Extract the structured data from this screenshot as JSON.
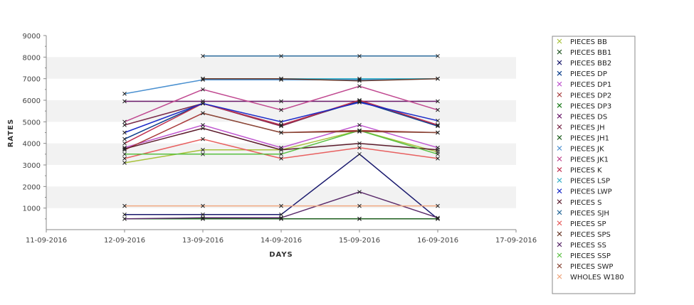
{
  "chart_data": {
    "type": "line",
    "xlabel": "DAYS",
    "ylabel": "RATES",
    "ylim": [
      0,
      9000
    ],
    "yticks": [
      1000,
      2000,
      3000,
      4000,
      5000,
      6000,
      7000,
      8000,
      9000
    ],
    "x_ticks": [
      "11-09-2016",
      "12-09-2016",
      "13-09-2016",
      "14-09-2016",
      "15-09-2016",
      "16-09-2016",
      "17-09-2016"
    ],
    "grid": "alternating horizontal bands",
    "legend_position": "right",
    "series": [
      {
        "name": "PIECES BB",
        "color": "#a8c23c",
        "values": [
          3100,
          3700,
          3700,
          4600,
          3600
        ]
      },
      {
        "name": "PIECES BB1",
        "color": "#2a5c2a",
        "values": [
          null,
          500,
          500,
          500,
          500
        ]
      },
      {
        "name": "PIECES BB2",
        "color": "#1a1a6e",
        "values": [
          700,
          700,
          700,
          3500,
          500
        ]
      },
      {
        "name": "PIECES DP",
        "color": "#0c3f8c",
        "values": [
          4200,
          5850,
          4850,
          5950,
          4800
        ]
      },
      {
        "name": "PIECES DP1",
        "color": "#c058d0",
        "values": [
          3800,
          4850,
          3800,
          4850,
          3800
        ]
      },
      {
        "name": "PIECES DP2",
        "color": "#a83c3c",
        "values": [
          3700,
          5400,
          4500,
          4600,
          4500
        ]
      },
      {
        "name": "PIECES DP3",
        "color": "#1a7a1a",
        "values": [
          500,
          500,
          500,
          500,
          500
        ]
      },
      {
        "name": "PIECES DS",
        "color": "#6a1a6a",
        "values": [
          5950,
          5950,
          5950,
          5950,
          5950
        ]
      },
      {
        "name": "PIECES JH",
        "color": "#7a2a4a",
        "values": [
          4850,
          5850,
          4800,
          6000,
          4850
        ]
      },
      {
        "name": "PIECES JH1",
        "color": "#1e5e1e",
        "values": [
          null,
          500,
          500,
          500,
          500
        ]
      },
      {
        "name": "PIECES JK",
        "color": "#4a90d0",
        "values": [
          6300,
          6950,
          6950,
          6950,
          7000
        ]
      },
      {
        "name": "PIECES JK1",
        "color": "#c04890",
        "values": [
          5000,
          6500,
          5550,
          6650,
          5550
        ]
      },
      {
        "name": "PIECES K",
        "color": "#c03050",
        "values": [
          4000,
          5850,
          4850,
          6000,
          4850
        ]
      },
      {
        "name": "PIECES LSP",
        "color": "#38b0c8",
        "values": [
          null,
          7000,
          7000,
          7000,
          7000
        ]
      },
      {
        "name": "PIECES LWP",
        "color": "#1a2ac8",
        "values": [
          4500,
          5850,
          5000,
          5900,
          5050
        ]
      },
      {
        "name": "PIECES S",
        "color": "#5a1a2a",
        "values": [
          3750,
          4700,
          3700,
          4000,
          3700
        ]
      },
      {
        "name": "PIECES SJH",
        "color": "#2a6a9a",
        "values": [
          null,
          8050,
          8050,
          8050,
          8050
        ]
      },
      {
        "name": "PIECES SP",
        "color": "#e86060",
        "values": [
          3300,
          4200,
          3300,
          3800,
          3300
        ]
      },
      {
        "name": "PIECES SPS",
        "color": "#6a3a2a",
        "values": [
          null,
          7000,
          7000,
          6900,
          7000
        ]
      },
      {
        "name": "PIECES SS",
        "color": "#5a2a6a",
        "values": [
          500,
          550,
          550,
          1750,
          550
        ]
      },
      {
        "name": "PIECES SSP",
        "color": "#58c040",
        "values": [
          3500,
          3500,
          3500,
          4600,
          3500
        ]
      },
      {
        "name": "PIECES SWP",
        "color": "#8a4a3a",
        "values": [
          null,
          5400,
          4500,
          4550,
          4500
        ]
      },
      {
        "name": "WHOLES W180",
        "color": "#f0a880",
        "values": [
          1100,
          1100,
          1100,
          1100,
          1100
        ]
      }
    ],
    "x_points": [
      1,
      2,
      3,
      4,
      5
    ]
  }
}
